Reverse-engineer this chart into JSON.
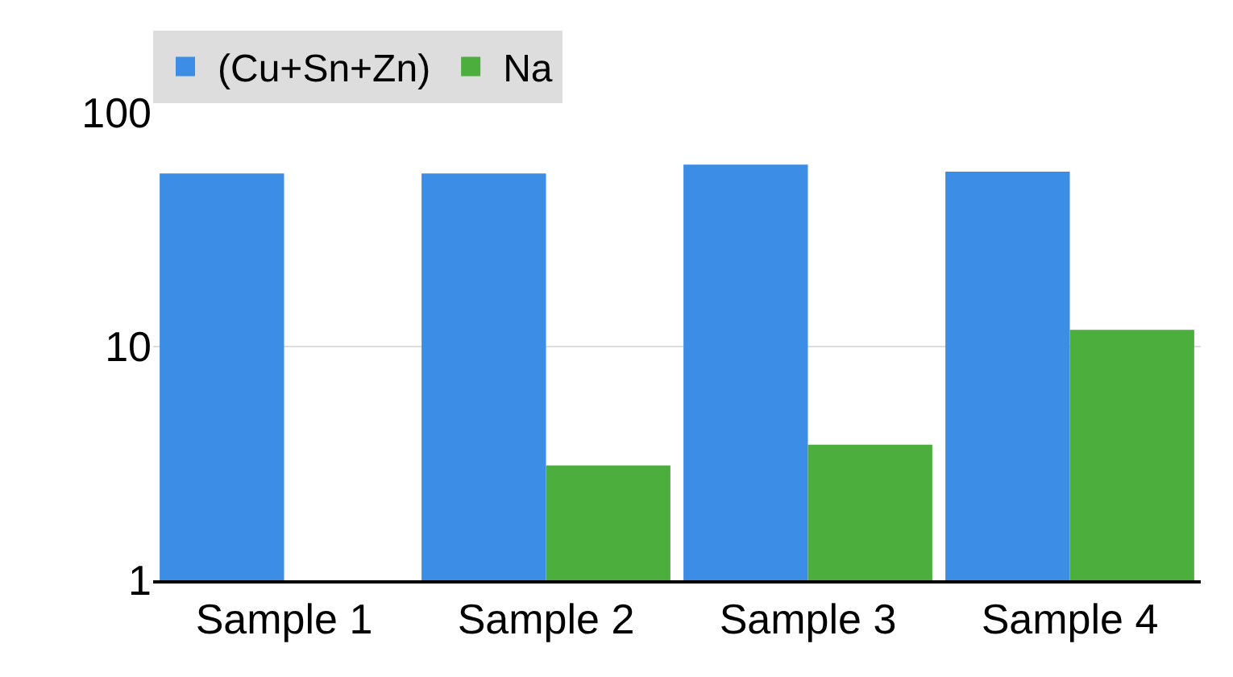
{
  "chart_data": {
    "type": "bar",
    "categories": [
      "Sample 1",
      "Sample 2",
      "Sample 3",
      "Sample 4"
    ],
    "series": [
      {
        "name": "(Cu+Sn+Zn)",
        "color": "#3b8de6",
        "values": [
          55,
          55,
          60,
          56
        ]
      },
      {
        "name": "Na",
        "color": "#4cae3c",
        "values": [
          null,
          3.1,
          3.8,
          11.8
        ]
      }
    ],
    "log": true,
    "ylim": [
      1,
      100
    ],
    "yticks": [
      1,
      10,
      100
    ],
    "grid": "y",
    "legend": "top"
  }
}
